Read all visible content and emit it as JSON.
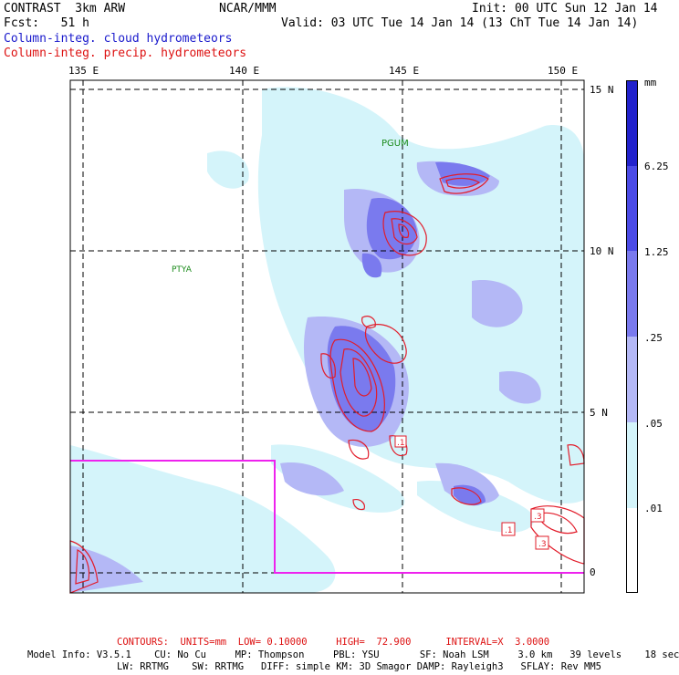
{
  "header": {
    "model": "CONTRAST  3km ARW",
    "center": "NCAR/MMM",
    "init": "Init: 00 UTC Sun 12 Jan 14",
    "fcst": "Fcst:   51 h",
    "valid": "Valid: 03 UTC Tue 14 Jan 14 (13 ChT Tue 14 Jan 14)",
    "field1": "Column-integ. cloud hydrometeors",
    "field2": "Column-integ. precip. hydrometeors"
  },
  "axes": {
    "lon_labels": [
      "135 E",
      "140 E",
      "145 E",
      "150 E"
    ],
    "lat_labels": [
      "15 N",
      "10 N",
      "5 N",
      "0"
    ]
  },
  "stations": [
    "PGUM",
    "PTYA"
  ],
  "contour_labels": [
    ".1",
    ".3",
    ".1",
    ".3"
  ],
  "legend": {
    "unit": "mm",
    "levels": [
      "6.25",
      "1.25",
      ".25",
      ".05",
      ".01"
    ],
    "colors": [
      "#2222cc",
      "#4b4be6",
      "#7a7aee",
      "#b4b8f6",
      "#d4f4fa",
      "#ffffff"
    ]
  },
  "colors": {
    "contour": "#e21c2a",
    "box": "#ee22ee",
    "cloud_light": "#d4f4fa",
    "cloud_mid": "#b4b8f6",
    "cloud_high": "#7a7aee"
  },
  "footer": {
    "contours": "CONTOURS:  UNITS=mm  LOW= 0.10000     HIGH=  72.900      INTERVAL=X  3.0000",
    "model_info": "Model Info: V3.5.1    CU: No Cu     MP: Thompson     PBL: YSU       SF: Noah LSM     3.0 km   39 levels    18 sec",
    "model_info2": "LW: RRTMG    SW: RRTMG   DIFF: simple KM: 3D Smagor DAMP: Rayleigh3   SFLAY: Rev MM5"
  }
}
